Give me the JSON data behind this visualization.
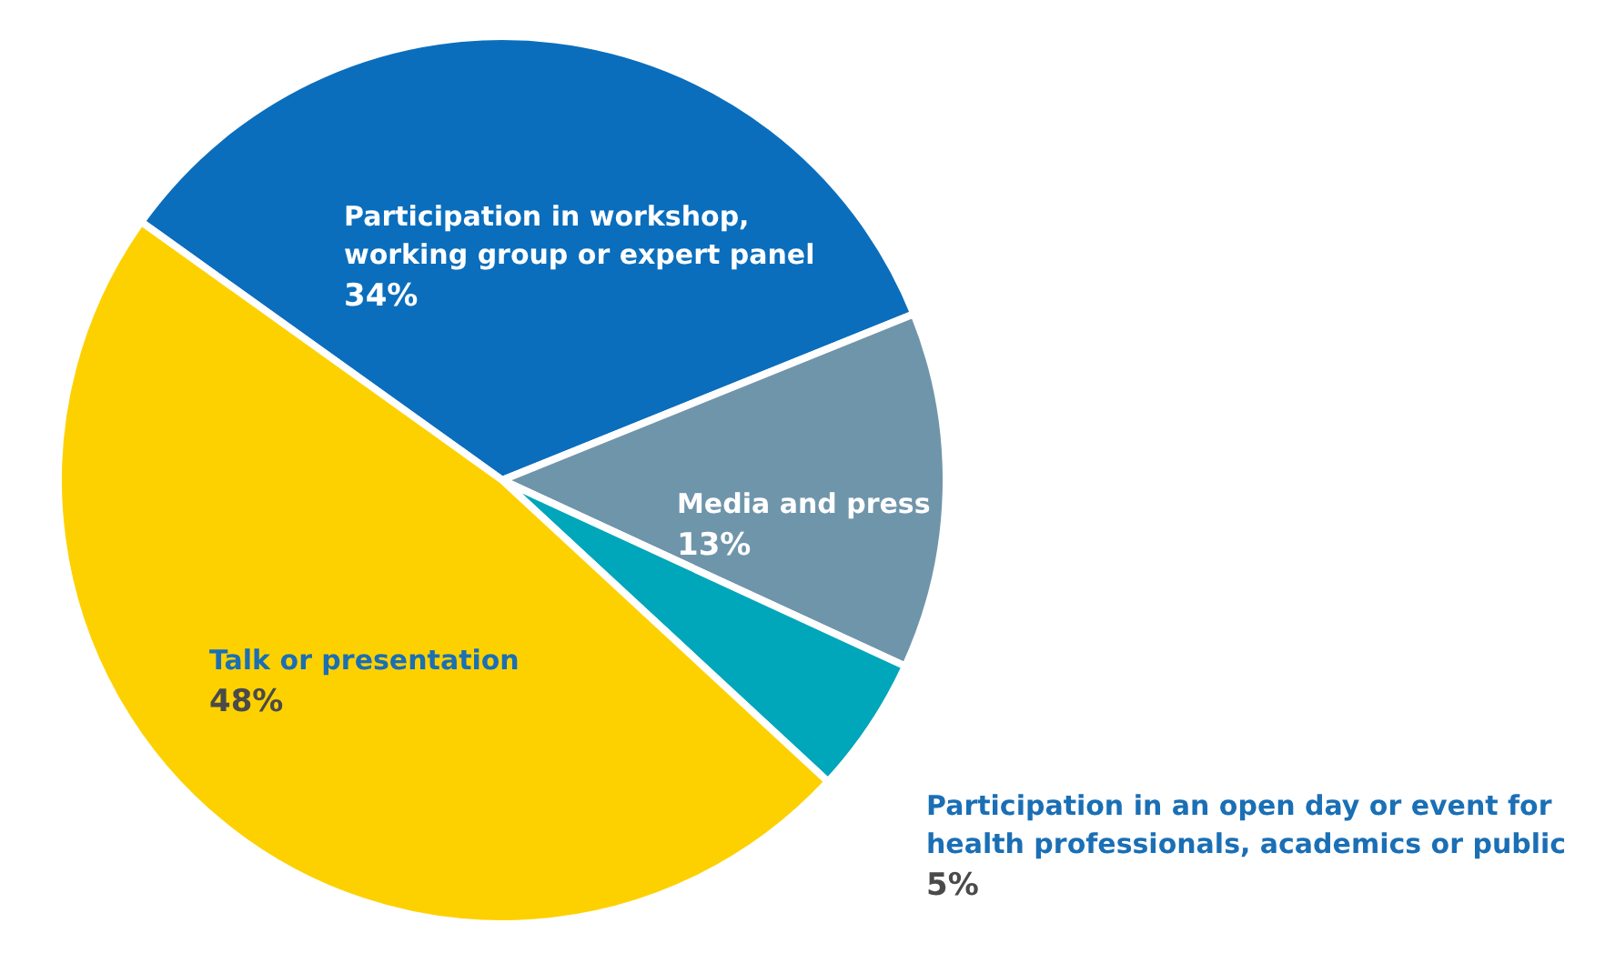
{
  "chart_data": {
    "type": "pie",
    "categories": [
      "Participation in workshop, working group or expert panel",
      "Media and press",
      "Participation in an open day or event for health professionals, academics or public",
      "Talk or presentation"
    ],
    "values": [
      34,
      13,
      5,
      48
    ],
    "value_labels": [
      "34%",
      "13%",
      "5%",
      "48%"
    ],
    "colors": [
      "#0a6ebd",
      "#6f95ab",
      "#00a6ba",
      "#fdd100"
    ]
  }
}
